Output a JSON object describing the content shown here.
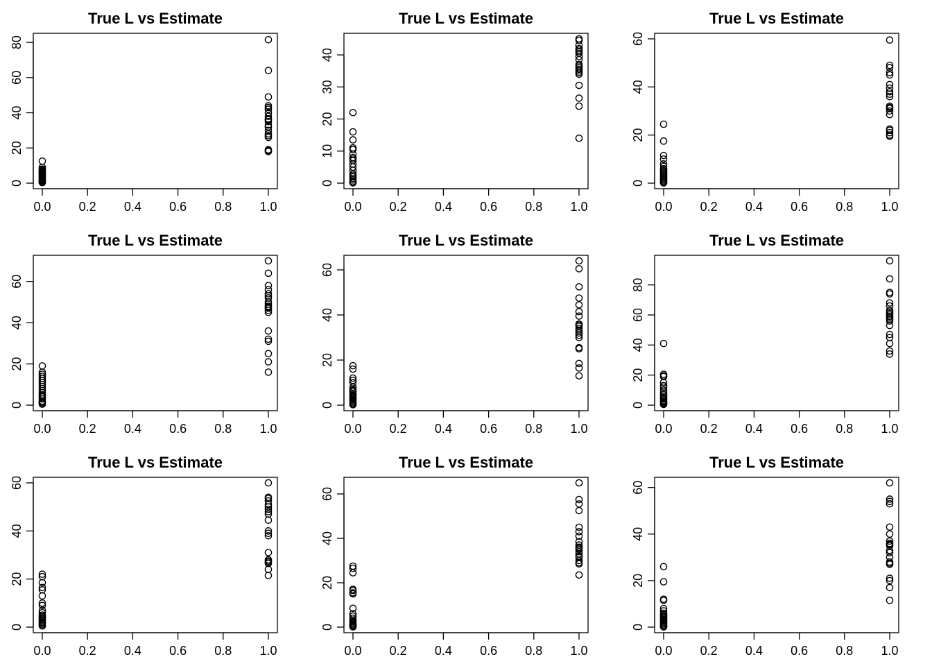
{
  "chart_data": [
    {
      "type": "scatter",
      "title": "True L vs Estimate",
      "xlabel": "",
      "ylabel": "",
      "xlim": [
        0,
        1
      ],
      "ylim": [
        0,
        82
      ],
      "xticks": [
        "0.0",
        "0.2",
        "0.4",
        "0.6",
        "0.8",
        "1.0"
      ],
      "yticks": [
        "0",
        "20",
        "40",
        "60",
        "80"
      ],
      "series": [
        {
          "x": [
            0,
            0,
            0,
            0,
            0,
            0,
            0,
            0,
            0,
            0,
            0,
            0,
            0,
            0,
            0,
            0,
            0,
            0,
            0,
            0
          ],
          "y": [
            12.5,
            9,
            8,
            7.5,
            7,
            6.5,
            6,
            5.5,
            5,
            4.5,
            4,
            3.5,
            3,
            2.5,
            2,
            1.5,
            1,
            0.8,
            0.5,
            0.3
          ]
        },
        {
          "x": [
            1,
            1,
            1,
            1,
            1,
            1,
            1,
            1,
            1,
            1,
            1,
            1,
            1,
            1,
            1,
            1,
            1,
            1,
            1,
            1
          ],
          "y": [
            81.5,
            64,
            49,
            44,
            43,
            42,
            40,
            38,
            36.5,
            36,
            35,
            33,
            32,
            30,
            28,
            27,
            26,
            19,
            18.5,
            18
          ]
        }
      ]
    },
    {
      "type": "scatter",
      "title": "True L vs Estimate",
      "xlabel": "",
      "ylabel": "",
      "xlim": [
        0,
        1
      ],
      "ylim": [
        0,
        45
      ],
      "xticks": [
        "0.0",
        "0.2",
        "0.4",
        "0.6",
        "0.8",
        "1.0"
      ],
      "yticks": [
        "0",
        "10",
        "20",
        "30",
        "40"
      ],
      "series": [
        {
          "x": [
            0,
            0,
            0,
            0,
            0,
            0,
            0,
            0,
            0,
            0,
            0,
            0,
            0,
            0,
            0,
            0,
            0,
            0,
            0,
            0
          ],
          "y": [
            22,
            16,
            13.5,
            11,
            10.5,
            9,
            8,
            7.5,
            7,
            6,
            5,
            4,
            3,
            2.5,
            2,
            1.5,
            1,
            0.5,
            0.3,
            0.1
          ]
        },
        {
          "x": [
            1,
            1,
            1,
            1,
            1,
            1,
            1,
            1,
            1,
            1,
            1,
            1,
            1,
            1,
            1,
            1,
            1,
            1,
            1,
            1
          ],
          "y": [
            45,
            44.5,
            43,
            42,
            41.5,
            41,
            38.5,
            37,
            36,
            35.5,
            35,
            34.5,
            30.5,
            26.5,
            24,
            14,
            39.5,
            40.5,
            36.5,
            34
          ]
        }
      ]
    },
    {
      "type": "scatter",
      "title": "True L vs Estimate",
      "xlabel": "",
      "ylabel": "",
      "xlim": [
        0,
        1
      ],
      "ylim": [
        0,
        60
      ],
      "xticks": [
        "0.0",
        "0.2",
        "0.4",
        "0.6",
        "0.8",
        "1.0"
      ],
      "yticks": [
        "0",
        "20",
        "40",
        "60"
      ],
      "series": [
        {
          "x": [
            0,
            0,
            0,
            0,
            0,
            0,
            0,
            0,
            0,
            0,
            0,
            0,
            0,
            0,
            0,
            0,
            0,
            0,
            0,
            0
          ],
          "y": [
            24.5,
            17.5,
            11.5,
            10,
            8,
            7,
            6,
            5.5,
            5,
            4.5,
            4,
            3.5,
            3,
            2.5,
            2,
            1.5,
            1,
            0.5,
            0.3,
            0.1
          ]
        },
        {
          "x": [
            1,
            1,
            1,
            1,
            1,
            1,
            1,
            1,
            1,
            1,
            1,
            1,
            1,
            1,
            1,
            1,
            1,
            1,
            1,
            1
          ],
          "y": [
            59.5,
            49,
            48,
            46,
            45,
            41,
            39.5,
            38,
            37,
            36,
            32,
            31.5,
            31,
            30,
            28.5,
            22.5,
            22,
            21,
            20,
            19.5
          ]
        }
      ]
    },
    {
      "type": "scatter",
      "title": "True L vs Estimate",
      "xlabel": "",
      "ylabel": "",
      "xlim": [
        0,
        1
      ],
      "ylim": [
        0,
        70
      ],
      "xticks": [
        "0.0",
        "0.2",
        "0.4",
        "0.6",
        "0.8",
        "1.0"
      ],
      "yticks": [
        "0",
        "20",
        "40",
        "60"
      ],
      "series": [
        {
          "x": [
            0,
            0,
            0,
            0,
            0,
            0,
            0,
            0,
            0,
            0,
            0,
            0,
            0,
            0,
            0,
            0,
            0,
            0,
            0,
            0
          ],
          "y": [
            19,
            16,
            15,
            14,
            13,
            12,
            11,
            10,
            9,
            8,
            7,
            6,
            5,
            4.5,
            4,
            3,
            2,
            1.5,
            1,
            0.5
          ]
        },
        {
          "x": [
            1,
            1,
            1,
            1,
            1,
            1,
            1,
            1,
            1,
            1,
            1,
            1,
            1,
            1,
            1,
            1,
            1,
            1,
            1,
            1
          ],
          "y": [
            70,
            64,
            58,
            56,
            54,
            52,
            50,
            49,
            48,
            47,
            46,
            45,
            36,
            32,
            31,
            25,
            21,
            16,
            53,
            47.5
          ]
        }
      ]
    },
    {
      "type": "scatter",
      "title": "True L vs Estimate",
      "xlabel": "",
      "ylabel": "",
      "xlim": [
        0,
        1
      ],
      "ylim": [
        0,
        64
      ],
      "xticks": [
        "0.0",
        "0.2",
        "0.4",
        "0.6",
        "0.8",
        "1.0"
      ],
      "yticks": [
        "0",
        "20",
        "40",
        "60"
      ],
      "series": [
        {
          "x": [
            0,
            0,
            0,
            0,
            0,
            0,
            0,
            0,
            0,
            0,
            0,
            0,
            0,
            0,
            0,
            0,
            0,
            0,
            0,
            0
          ],
          "y": [
            17.5,
            16,
            12,
            11,
            10,
            8,
            7,
            6.5,
            6,
            5,
            4.5,
            4,
            3.5,
            3,
            2.5,
            2,
            1.5,
            1,
            0.5,
            0.2
          ]
        },
        {
          "x": [
            1,
            1,
            1,
            1,
            1,
            1,
            1,
            1,
            1,
            1,
            1,
            1,
            1,
            1,
            1,
            1,
            1,
            1,
            1,
            1
          ],
          "y": [
            64,
            60.5,
            52.5,
            47.5,
            44.5,
            41.5,
            39.5,
            36,
            35,
            34,
            33,
            32,
            31,
            30,
            25.5,
            25,
            18.5,
            16.5,
            13,
            35.5
          ]
        }
      ]
    },
    {
      "type": "scatter",
      "title": "True L vs Estimate",
      "xlabel": "",
      "ylabel": "",
      "xlim": [
        0,
        1
      ],
      "ylim": [
        0,
        96
      ],
      "xticks": [
        "0.0",
        "0.2",
        "0.4",
        "0.6",
        "0.8",
        "1.0"
      ],
      "yticks": [
        "0",
        "20",
        "40",
        "60",
        "80"
      ],
      "series": [
        {
          "x": [
            0,
            0,
            0,
            0,
            0,
            0,
            0,
            0,
            0,
            0,
            0,
            0,
            0,
            0,
            0,
            0,
            0,
            0,
            0,
            0
          ],
          "y": [
            41,
            20.5,
            19.5,
            19,
            15,
            13,
            12,
            10,
            8,
            7,
            6,
            5,
            4.5,
            4,
            3,
            2.5,
            2,
            1.5,
            1,
            0.5
          ]
        },
        {
          "x": [
            1,
            1,
            1,
            1,
            1,
            1,
            1,
            1,
            1,
            1,
            1,
            1,
            1,
            1,
            1,
            1,
            1,
            1,
            1,
            1
          ],
          "y": [
            96,
            84,
            75,
            74,
            68,
            66,
            63,
            62,
            61,
            60,
            59,
            58,
            57,
            56,
            53,
            47,
            45,
            41,
            36,
            34
          ]
        }
      ]
    },
    {
      "type": "scatter",
      "title": "True L vs Estimate",
      "xlabel": "",
      "ylabel": "",
      "xlim": [
        0,
        1
      ],
      "ylim": [
        0,
        60
      ],
      "xticks": [
        "0.0",
        "0.2",
        "0.4",
        "0.6",
        "0.8",
        "1.0"
      ],
      "yticks": [
        "0",
        "20",
        "40",
        "60"
      ],
      "series": [
        {
          "x": [
            0,
            0,
            0,
            0,
            0,
            0,
            0,
            0,
            0,
            0,
            0,
            0,
            0,
            0,
            0,
            0,
            0,
            0,
            0,
            0
          ],
          "y": [
            22,
            21,
            18.5,
            16.5,
            15.5,
            13,
            10,
            9,
            7,
            6,
            5,
            4.5,
            4,
            3.5,
            3,
            2.5,
            2,
            1.5,
            1,
            0.5
          ]
        },
        {
          "x": [
            1,
            1,
            1,
            1,
            1,
            1,
            1,
            1,
            1,
            1,
            1,
            1,
            1,
            1,
            1,
            1,
            1,
            1,
            1,
            1
          ],
          "y": [
            60,
            54,
            53.5,
            51,
            50,
            49,
            47,
            44.5,
            40,
            39,
            38,
            31,
            28,
            27.5,
            27,
            26.5,
            24,
            21.5,
            52.5,
            48
          ]
        }
      ]
    },
    {
      "type": "scatter",
      "title": "True L vs Estimate",
      "xlabel": "",
      "ylabel": "",
      "xlim": [
        0,
        1
      ],
      "ylim": [
        0,
        65
      ],
      "xticks": [
        "0.0",
        "0.2",
        "0.4",
        "0.6",
        "0.8",
        "1.0"
      ],
      "yticks": [
        "0",
        "20",
        "40",
        "60"
      ],
      "series": [
        {
          "x": [
            0,
            0,
            0,
            0,
            0,
            0,
            0,
            0,
            0,
            0,
            0,
            0,
            0,
            0,
            0,
            0,
            0,
            0,
            0,
            0
          ],
          "y": [
            27.5,
            26.5,
            24.5,
            17,
            16.5,
            15.5,
            15,
            8.5,
            6,
            5,
            4,
            3,
            2.5,
            2,
            1.5,
            1,
            0.8,
            0.5,
            0.3,
            0.1
          ]
        },
        {
          "x": [
            1,
            1,
            1,
            1,
            1,
            1,
            1,
            1,
            1,
            1,
            1,
            1,
            1,
            1,
            1,
            1,
            1,
            1,
            1,
            1
          ],
          "y": [
            65,
            57.5,
            55.5,
            52.5,
            45,
            43,
            41,
            38.5,
            37,
            36,
            35.5,
            35,
            34,
            33,
            31.5,
            30,
            29,
            28.5,
            23.5,
            32
          ]
        }
      ]
    },
    {
      "type": "scatter",
      "title": "True L vs Estimate",
      "xlabel": "",
      "ylabel": "",
      "xlim": [
        0,
        1
      ],
      "ylim": [
        0,
        62
      ],
      "xticks": [
        "0.0",
        "0.2",
        "0.4",
        "0.6",
        "0.8",
        "1.0"
      ],
      "yticks": [
        "0",
        "20",
        "40",
        "60"
      ],
      "series": [
        {
          "x": [
            0,
            0,
            0,
            0,
            0,
            0,
            0,
            0,
            0,
            0,
            0,
            0,
            0,
            0,
            0,
            0,
            0,
            0,
            0,
            0
          ],
          "y": [
            26,
            19.5,
            12,
            11.5,
            8,
            7,
            6,
            5.5,
            5,
            4.5,
            4,
            3.5,
            3,
            2.5,
            2,
            1.5,
            1,
            0.5,
            0.3,
            0.1
          ]
        },
        {
          "x": [
            1,
            1,
            1,
            1,
            1,
            1,
            1,
            1,
            1,
            1,
            1,
            1,
            1,
            1,
            1,
            1,
            1,
            1,
            1,
            1
          ],
          "y": [
            62,
            55,
            54,
            53,
            43,
            40,
            37,
            36,
            35,
            33,
            30,
            28,
            27.5,
            27,
            21,
            20,
            17,
            11.5,
            35.5,
            32
          ]
        }
      ]
    }
  ]
}
